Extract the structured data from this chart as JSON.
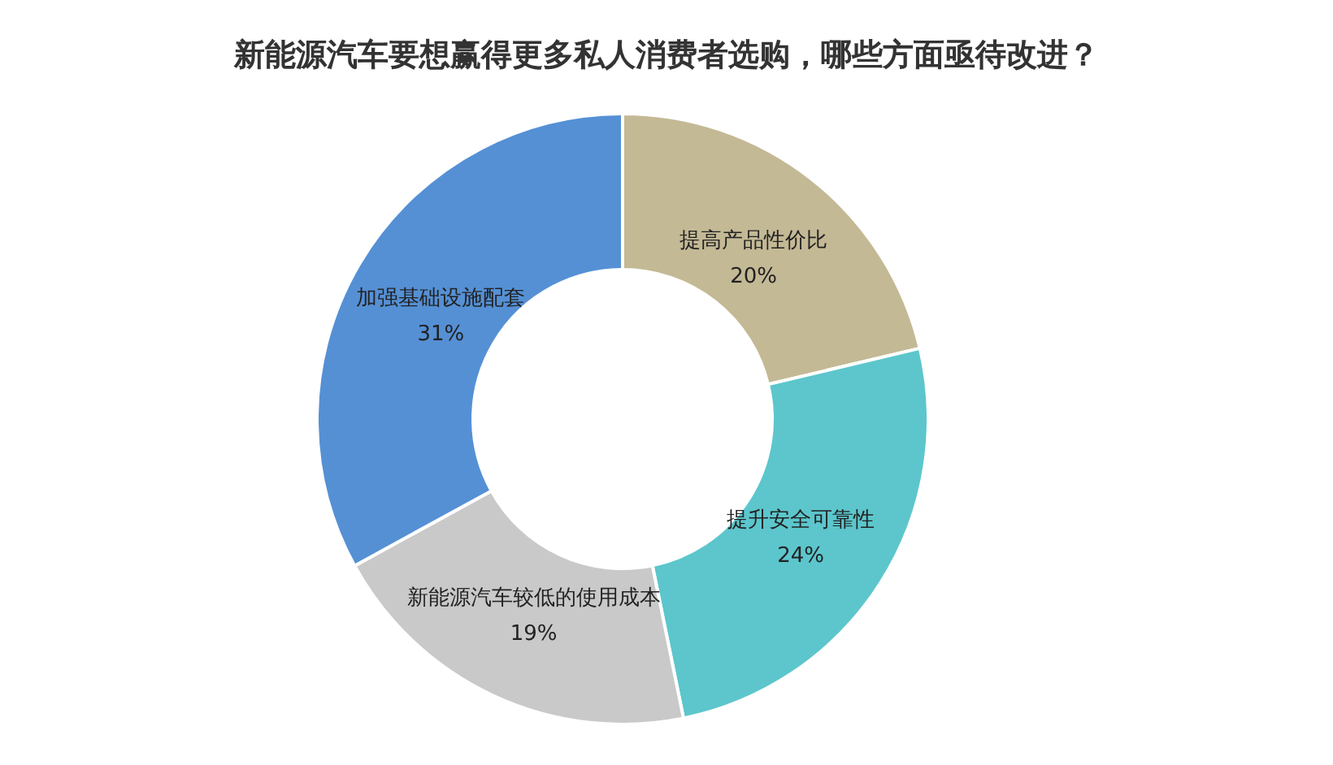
{
  "chart_data": {
    "type": "donut",
    "title": "新能源汽车要想赢得更多私人消费者选购，哪些方面亟待改进？",
    "categories": [
      "提高产品性价比",
      "提升安全可靠性",
      "新能源汽车较低的使用成本",
      "加强基础设施配套"
    ],
    "values": [
      20,
      24,
      19,
      31
    ],
    "value_labels": [
      "20%",
      "24%",
      "19%",
      "31%"
    ],
    "colors": [
      "#c4b995",
      "#5cc6cc",
      "#c9c9c9",
      "#5590d5"
    ]
  }
}
